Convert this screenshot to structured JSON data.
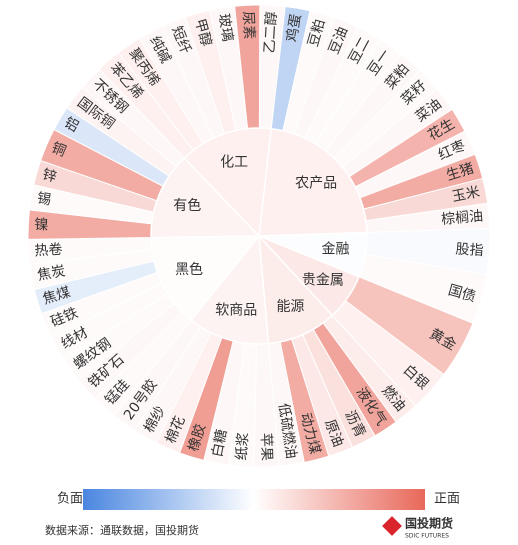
{
  "chart_data": {
    "type": "sunburst",
    "groups": [
      {
        "name": "农产品",
        "value": 0.1,
        "children": [
          {
            "name": "鸡蛋",
            "size": 6,
            "value": -0.35
          },
          {
            "name": "豆粕",
            "size": 6,
            "value": 0.03
          },
          {
            "name": "豆油",
            "size": 6,
            "value": 0.05
          },
          {
            "name": "豆二",
            "size": 6,
            "value": 0.03
          },
          {
            "name": "豆一",
            "size": 6,
            "value": 0.03
          },
          {
            "name": "菜粕",
            "size": 6,
            "value": 0.05
          },
          {
            "name": "菜籽",
            "size": 6,
            "value": 0.03
          },
          {
            "name": "菜油",
            "size": 6,
            "value": 0.05
          },
          {
            "name": "花生",
            "size": 6,
            "value": 0.5
          },
          {
            "name": "红枣",
            "size": 6,
            "value": 0.05
          },
          {
            "name": "生猪",
            "size": 6,
            "value": 0.55
          },
          {
            "name": "玉米",
            "size": 6,
            "value": 0.25
          },
          {
            "name": "棕榈油",
            "size": 6,
            "value": 0.05
          }
        ]
      },
      {
        "name": "金融",
        "value": -0.02,
        "children": [
          {
            "name": "股指",
            "size": 11,
            "value": -0.04
          },
          {
            "name": "国债",
            "size": 12,
            "value": 0.03
          }
        ]
      },
      {
        "name": "贵金属",
        "value": 0.15,
        "children": [
          {
            "name": "黄金",
            "size": 14,
            "value": 0.4
          },
          {
            "name": "白银",
            "size": 10,
            "value": 0.1
          }
        ]
      },
      {
        "name": "能源",
        "value": 0.12,
        "children": [
          {
            "name": "燃油",
            "size": 6,
            "value": 0.12
          },
          {
            "name": "液化气",
            "size": 6,
            "value": 0.6
          },
          {
            "name": "沥青",
            "size": 6,
            "value": 0.2
          },
          {
            "name": "原油",
            "size": 6,
            "value": 0.15
          },
          {
            "name": "动力煤",
            "size": 6,
            "value": 0.55
          },
          {
            "name": "低硫燃油",
            "size": 6,
            "value": 0.05
          }
        ]
      },
      {
        "name": "软商品",
        "value": 0.08,
        "children": [
          {
            "name": "苹果",
            "size": 6,
            "value": 0.05
          },
          {
            "name": "纸浆",
            "size": 6,
            "value": 0.03
          },
          {
            "name": "白糖",
            "size": 6,
            "value": 0.05
          },
          {
            "name": "橡胶",
            "size": 6,
            "value": 0.65
          },
          {
            "name": "棉花",
            "size": 6,
            "value": 0.1
          },
          {
            "name": "棉纱",
            "size": 6,
            "value": 0.05
          },
          {
            "name": "20号胶",
            "size": 6,
            "value": 0.05
          }
        ]
      },
      {
        "name": "黑色",
        "value": 0.02,
        "children": [
          {
            "name": "锰硅",
            "size": 6,
            "value": 0.03
          },
          {
            "name": "铁矿石",
            "size": 6,
            "value": 0.05
          },
          {
            "name": "螺纹钢",
            "size": 6,
            "value": 0.03
          },
          {
            "name": "线材",
            "size": 6,
            "value": 0.03
          },
          {
            "name": "硅铁",
            "size": 6,
            "value": 0.03
          },
          {
            "name": "焦煤",
            "size": 6,
            "value": -0.15
          },
          {
            "name": "焦炭",
            "size": 6,
            "value": 0.03
          },
          {
            "name": "热卷",
            "size": 6,
            "value": 0.03
          }
        ]
      },
      {
        "name": "有色",
        "value": 0.08,
        "children": [
          {
            "name": "镍",
            "size": 7,
            "value": 0.55
          },
          {
            "name": "锡",
            "size": 6,
            "value": 0.03
          },
          {
            "name": "锌",
            "size": 6,
            "value": 0.25
          },
          {
            "name": "铜",
            "size": 8,
            "value": 0.55
          },
          {
            "name": "铝",
            "size": 6,
            "value": -0.2
          },
          {
            "name": "国际铜",
            "size": 6,
            "value": 0.08
          },
          {
            "name": "不锈钢",
            "size": 6,
            "value": 0.05
          }
        ]
      },
      {
        "name": "化工",
        "value": 0.1,
        "children": [
          {
            "name": "苯乙烯",
            "size": 6,
            "value": 0.1
          },
          {
            "name": "聚丙烯",
            "size": 6,
            "value": 0.1
          },
          {
            "name": "纯碱",
            "size": 6,
            "value": 0.05
          },
          {
            "name": "短纤",
            "size": 6,
            "value": 0.05
          },
          {
            "name": "甲醇",
            "size": 6,
            "value": 0.1
          },
          {
            "name": "玻璃",
            "size": 6,
            "value": 0.05
          },
          {
            "name": "尿素",
            "size": 6,
            "value": 0.6
          },
          {
            "name": "乙二醇",
            "size": 6,
            "value": 0.05
          }
        ]
      }
    ],
    "colorscale": {
      "range": [
        -1,
        1
      ],
      "colors": [
        "#4a86e0",
        "#ffffff",
        "#e8685a"
      ]
    },
    "colorbar": {
      "low_label": "负面",
      "high_label": "正面"
    }
  },
  "footer": {
    "source": "数据来源：通联数据，国投期货",
    "logo": "国投期货",
    "logo_sub": "SDIC FUTURES"
  }
}
